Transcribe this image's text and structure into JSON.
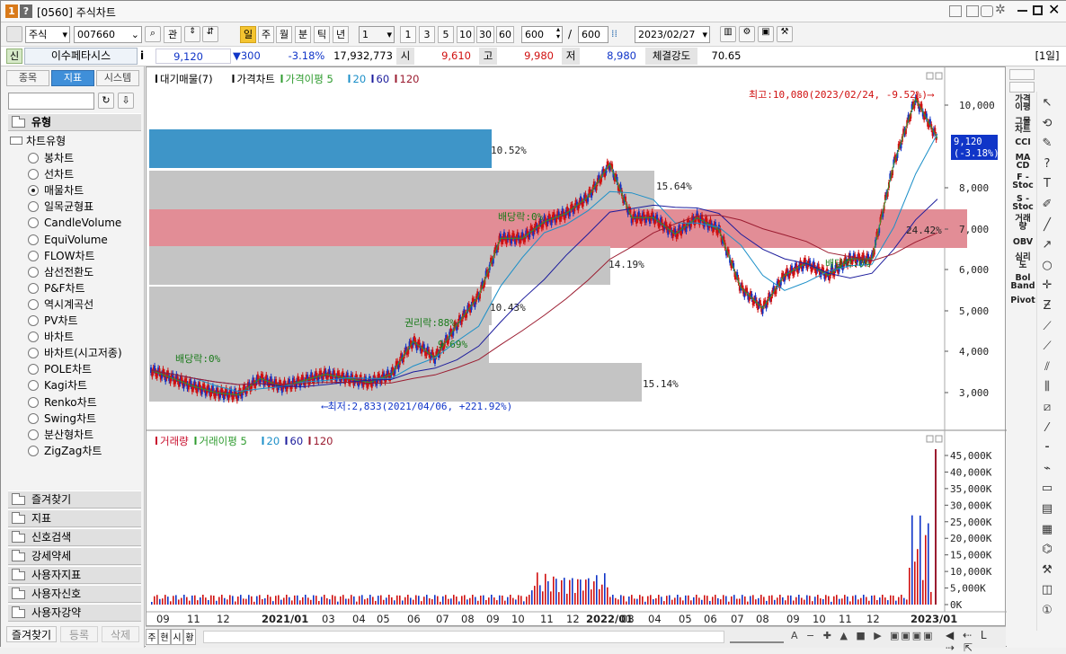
{
  "window": {
    "icon_label_1": "1",
    "icon_label_2": "?",
    "title": "[0560] 주식차트"
  },
  "toolbar": {
    "market": "주식",
    "code": "007660",
    "btn_gwan": "관",
    "period_buttons": [
      "일",
      "주",
      "월",
      "분",
      "틱",
      "년"
    ],
    "period_selected": "일",
    "unit_value": "1",
    "n_buttons": [
      "1",
      "3",
      "5",
      "10",
      "30",
      "60"
    ],
    "count_value": "600",
    "count_total": "600",
    "slash": "/",
    "date": "2023/02/27"
  },
  "quote": {
    "tag": "신",
    "name": "이수페타시스",
    "info": "i",
    "price": "9,120",
    "change": "▼300",
    "change_pct": "-3.18%",
    "volume": "17,932,773",
    "open_label": "시",
    "open": "9,610",
    "high_label": "고",
    "high": "9,980",
    "low_label": "저",
    "low": "8,980",
    "strength_label": "체결강도",
    "strength": "70.65",
    "period_tag": "[1일]"
  },
  "left": {
    "tabs": [
      "종목",
      "지표",
      "시스템"
    ],
    "active_tab": "지표",
    "group_type": "유형",
    "tree_root": "차트유형",
    "chart_types": [
      "봉차트",
      "선차트",
      "매물차트",
      "일목균형표",
      "CandleVolume",
      "EquiVolume",
      "FLOW차트",
      "삼선전환도",
      "P&F차트",
      "역시계곡선",
      "PV차트",
      "바차트",
      "바차트(시고저종)",
      "POLE차트",
      "Kagi차트",
      "Renko차트",
      "Swing차트",
      "분산형차트",
      "ZigZag차트"
    ],
    "selected_type": "매물차트",
    "bottom_groups": [
      "즐겨찾기",
      "지표",
      "신호검색",
      "강세약세",
      "사용자지표",
      "사용자신호",
      "사용자강약"
    ],
    "footer_tabs": [
      "즐겨찾기",
      "등록",
      "삭제"
    ]
  },
  "price_pane": {
    "legend": [
      {
        "label": "대기매물(7)",
        "color": "#000000"
      },
      {
        "label": "가격차트",
        "color": "#000000"
      },
      {
        "label": "가격이평 5",
        "color": "#2e9b2e"
      },
      {
        "label": "20",
        "color": "#1b8fc8"
      },
      {
        "label": "60",
        "color": "#1c1c9c"
      },
      {
        "label": "120",
        "color": "#9b1c30"
      }
    ],
    "y_ticks": [
      "10,000",
      "8,000",
      "7,000",
      "6,000",
      "5,000",
      "4,000",
      "3,000"
    ],
    "current_price_box": "9,120",
    "current_price_pct": "(-3.18%)",
    "max_annotation": "최고:10,080(2023/02/24, -9.52%)⟶",
    "min_annotation": "⟵최저:2,833(2021/04/06, +221.92%)",
    "volume_profile": [
      {
        "pct": "10.52%",
        "color": "#3e95c8"
      },
      {
        "pct": "15.64%",
        "color": "#c4c4c4"
      },
      {
        "pct": "24.42%",
        "color": "#e28d96"
      },
      {
        "pct": "14.19%",
        "color": "#c4c4c4"
      },
      {
        "pct": "10.43%",
        "color": "#c4c4c4"
      },
      {
        "pct": "",
        "color": "#c4c4c4"
      },
      {
        "pct": "15.14%",
        "color": "#c4c4c4"
      }
    ],
    "events": [
      "배당락:0%",
      "권리락:88%",
      "9.69%",
      "배당락:0%",
      "배당락:0%"
    ]
  },
  "volume_pane": {
    "legend": [
      {
        "label": "거래량",
        "color": "#c8102e"
      },
      {
        "label": "거래이평 5",
        "color": "#2e9b2e"
      },
      {
        "label": "20",
        "color": "#1b8fc8"
      },
      {
        "label": "60",
        "color": "#1c1c9c"
      },
      {
        "label": "120",
        "color": "#9b1c30"
      }
    ],
    "y_ticks": [
      "45,000K",
      "40,000K",
      "35,000K",
      "30,000K",
      "25,000K",
      "20,000K",
      "15,000K",
      "10,000K",
      "5,000K",
      "0K"
    ]
  },
  "x_axis": [
    "09",
    "11",
    "12",
    "2021/01",
    "03",
    "04",
    "05",
    "06",
    "07",
    "08",
    "09",
    "10",
    "11",
    "12",
    "2022/01",
    "03",
    "04",
    "05",
    "06",
    "07",
    "08",
    "09",
    "10",
    "11",
    "12",
    "2023/01"
  ],
  "right": {
    "indicators": [
      "가격\n이평",
      "그물\n차트",
      "CCI",
      "MA\nCD",
      "F -\nStoc",
      "S -\nStoc",
      "거래\n량",
      "OBV",
      "심리\n도",
      "Bol\nBand",
      "Pivot"
    ]
  },
  "bottom": {
    "buttons": [
      "주",
      "현",
      "시",
      "황"
    ]
  },
  "chart_data": {
    "type": "line",
    "title": "",
    "series": [
      {
        "name": "가격차트",
        "values": [
          3.5,
          3.3,
          3.1,
          2.95,
          2.9,
          3.3,
          3.1,
          3.25,
          3.4,
          3.3,
          3.2,
          3.4,
          4.2,
          3.8,
          4.6,
          5.3,
          6.7,
          6.7,
          7.1,
          7.3,
          7.7,
          8.5,
          7.2,
          7.2,
          6.8,
          7.2,
          6.9,
          5.5,
          5.0,
          5.8,
          6.1,
          5.8,
          6.2,
          6.2,
          8.5,
          10.08,
          9.12
        ]
      }
    ],
    "ylim": [
      2500,
      10500
    ]
  },
  "colors": {
    "accent": "#3f8fd9",
    "up": "#d01010",
    "down": "#1035c8",
    "ma5": "#2e9b2e",
    "ma20": "#1b8fc8",
    "ma60": "#1c1c9c",
    "ma120": "#9b1c30"
  }
}
